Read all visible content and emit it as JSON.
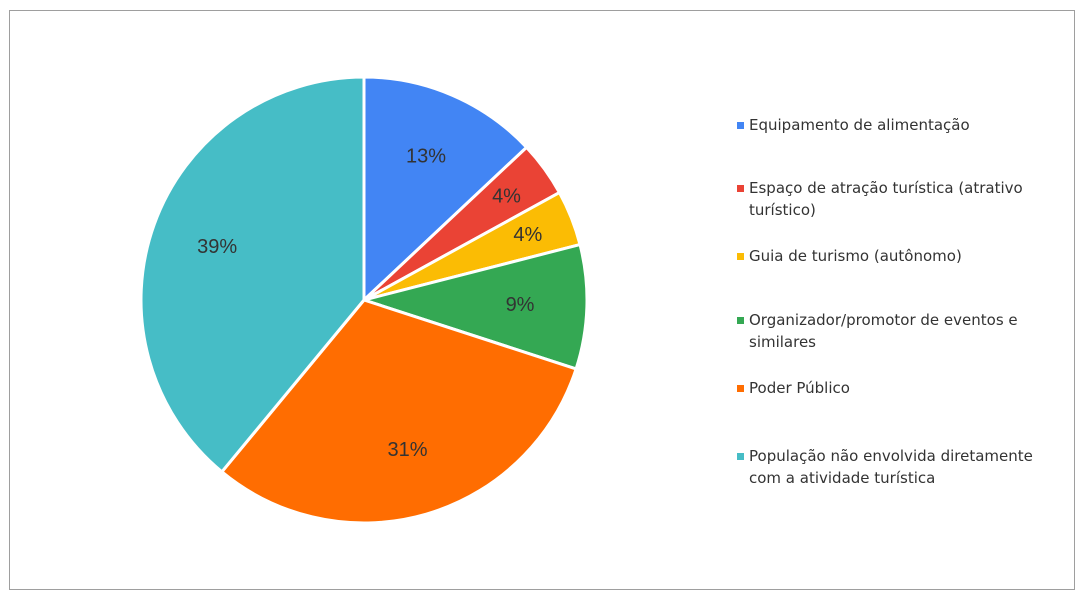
{
  "chart_data": {
    "type": "pie",
    "title": "",
    "slices": [
      {
        "label": "Equipamento de alimentação",
        "value": 13,
        "display": "13%",
        "color": "#4285F4"
      },
      {
        "label": "Espaço de atração turística (atrativo turístico)",
        "value": 4,
        "display": "4%",
        "color": "#EA4335"
      },
      {
        "label": "Guia de turismo (autônomo)",
        "value": 4,
        "display": "4%",
        "color": "#FBBC04"
      },
      {
        "label": "Organizador/promotor de eventos e similares",
        "value": 9,
        "display": "9%",
        "color": "#34A853"
      },
      {
        "label": "Poder Público",
        "value": 31,
        "display": "31%",
        "color": "#FF6D01"
      },
      {
        "label": "População não envolvida diretamente com a atividade turística",
        "value": 39,
        "display": "39%",
        "color": "#46BDC6"
      }
    ],
    "legend_position": "right"
  }
}
